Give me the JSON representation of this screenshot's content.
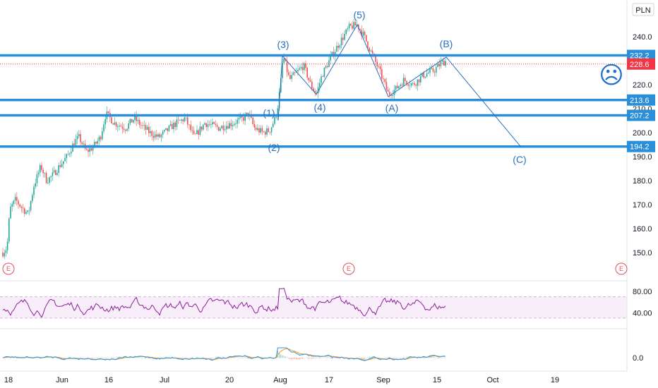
{
  "currency": "PLN",
  "colors": {
    "up": "#26a69a",
    "down": "#ef5350",
    "level": "#2a8fd8",
    "wave": "#2a6fbf",
    "current": "#f23645",
    "rsi": "#8e1f9a",
    "macd": "#2196f3",
    "signal": "#ff9800"
  },
  "chart_data": {
    "type": "candlestick",
    "price_axis": {
      "ticks": [
        "150.0",
        "160.0",
        "170.0",
        "180.0",
        "190.0",
        "200.0",
        "210.0",
        "220.0",
        "240.0"
      ],
      "range": [
        140,
        250
      ]
    },
    "time_axis": {
      "labels": [
        "18",
        "Jun",
        "16",
        "Jul",
        "20",
        "Aug",
        "17",
        "Sep",
        "15",
        "Oct",
        "19"
      ]
    },
    "levels": [
      {
        "price": 232.2,
        "label": "232.2"
      },
      {
        "price": 213.6,
        "label": "213.6"
      },
      {
        "price": 207.2,
        "label": "207.2"
      },
      {
        "price": 194.2,
        "label": "194.2"
      }
    ],
    "current_price": {
      "value": 228.6,
      "label": "228.6"
    },
    "waves": [
      {
        "label": "(1)",
        "price": 205
      },
      {
        "label": "(2)",
        "price": 197
      },
      {
        "label": "(3)",
        "price": 232
      },
      {
        "label": "(4)",
        "price": 216
      },
      {
        "label": "(5)",
        "price": 245
      },
      {
        "label": "(A)",
        "price": 215
      },
      {
        "label": "(B)",
        "price": 231.5
      },
      {
        "label": "(C)",
        "price": 194
      }
    ],
    "earnings_marks": [
      "E",
      "E",
      "E"
    ],
    "rsi": {
      "ticks": [
        "80.00",
        "40.00"
      ],
      "band": [
        70,
        30
      ]
    },
    "macd": {
      "ticks": [
        "0.0"
      ]
    },
    "emoji": "☹"
  }
}
